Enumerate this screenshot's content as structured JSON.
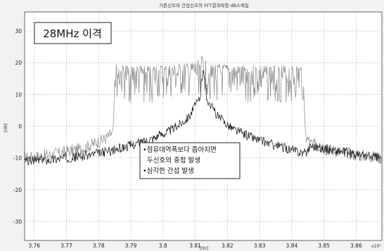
{
  "chart_data": {
    "type": "line",
    "title": "기존신호와 간섭신호의 FFT결과파형 dB스케일",
    "xlabel": "[Hz]",
    "ylabel": "[dB]",
    "xlim": [
      3.757,
      3.868
    ],
    "ylim": [
      -36,
      36
    ],
    "x_ticks": [
      "3.76",
      "3.77",
      "3.78",
      "3.79",
      "3.8",
      "3.81",
      "3.82",
      "3.83",
      "3.84",
      "3.85",
      "3.86"
    ],
    "x_tick_values": [
      3.76,
      3.77,
      3.78,
      3.79,
      3.8,
      3.81,
      3.82,
      3.83,
      3.84,
      3.85,
      3.86
    ],
    "y_ticks": [
      "30",
      "20",
      "10",
      "0",
      "-10",
      "-20",
      "-30"
    ],
    "y_tick_values": [
      30,
      20,
      10,
      0,
      -10,
      -20,
      -30
    ],
    "x_exponent_label": "x10⁹",
    "grid": true,
    "series": [
      {
        "color": "#888888",
        "points": [
          [
            3.757,
            -10
          ],
          [
            3.765,
            -9
          ],
          [
            3.775,
            -7
          ],
          [
            3.782,
            -4
          ],
          [
            3.7845,
            -2
          ],
          [
            3.7852,
            19.5
          ],
          [
            3.79,
            19
          ],
          [
            3.8,
            19
          ],
          [
            3.81,
            20
          ],
          [
            3.812,
            22
          ],
          [
            3.815,
            19.5
          ],
          [
            3.825,
            19
          ],
          [
            3.835,
            19
          ],
          [
            3.8435,
            19
          ],
          [
            3.8442,
            -3
          ],
          [
            3.846,
            -5.5
          ],
          [
            3.85,
            -7
          ],
          [
            3.855,
            -8
          ],
          [
            3.86,
            -9
          ],
          [
            3.868,
            -10
          ]
        ]
      },
      {
        "color": "#111111",
        "points": [
          [
            3.757,
            -11
          ],
          [
            3.765,
            -10.5
          ],
          [
            3.775,
            -9.5
          ],
          [
            3.785,
            -7.5
          ],
          [
            3.795,
            -4.5
          ],
          [
            3.803,
            -1
          ],
          [
            3.808,
            3
          ],
          [
            3.8115,
            9
          ],
          [
            3.8125,
            19
          ],
          [
            3.8135,
            9
          ],
          [
            3.817,
            3
          ],
          [
            3.822,
            -1
          ],
          [
            3.83,
            -4.5
          ],
          [
            3.84,
            -7.5
          ],
          [
            3.8442,
            -8.5
          ],
          [
            3.846,
            -6
          ],
          [
            3.85,
            -7
          ],
          [
            3.855,
            -8
          ],
          [
            3.86,
            -9
          ],
          [
            3.868,
            -10
          ]
        ]
      }
    ],
    "annotations": {
      "separation_label": "28MHz 이격",
      "note_line1": "•점유대역폭보다 좁아지면",
      "note_line2": "두신호의 중첩 발생",
      "note_line3": "•심각한 간섭 발생"
    }
  }
}
